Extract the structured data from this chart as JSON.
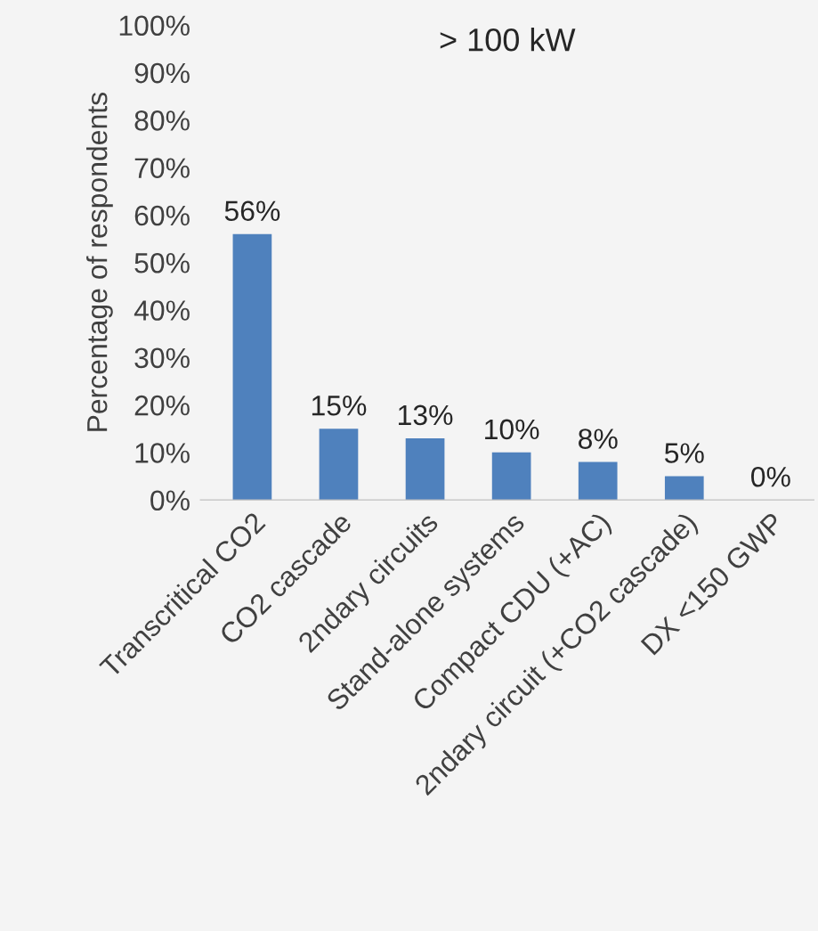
{
  "chart_data": {
    "type": "bar",
    "title": "> 100 kW",
    "ylabel": "Percentage of respondents",
    "categories": [
      "Transcritical CO2",
      "CO2 cascade",
      "2ndary circuits",
      "Stand-alone systems",
      "Compact CDU (+AC)",
      "2ndary circuit (+CO2 cascade)",
      "DX <150 GWP"
    ],
    "values": [
      56,
      15,
      13,
      10,
      8,
      5,
      0
    ],
    "value_labels": [
      "56%",
      "15%",
      "13%",
      "10%",
      "8%",
      "5%",
      "0%"
    ],
    "color": "#4f81bd",
    "ylim": [
      0,
      100
    ],
    "yticks": [
      {
        "value": 0,
        "label": "0%"
      },
      {
        "value": 10,
        "label": "10%"
      },
      {
        "value": 20,
        "label": "20%"
      },
      {
        "value": 30,
        "label": "30%"
      },
      {
        "value": 40,
        "label": "40%"
      },
      {
        "value": 50,
        "label": "50%"
      },
      {
        "value": 60,
        "label": "60%"
      },
      {
        "value": 70,
        "label": "70%"
      },
      {
        "value": 80,
        "label": "80%"
      },
      {
        "value": 90,
        "label": "90%"
      },
      {
        "value": 100,
        "label": "100%"
      }
    ],
    "grid": false,
    "legend": false
  }
}
